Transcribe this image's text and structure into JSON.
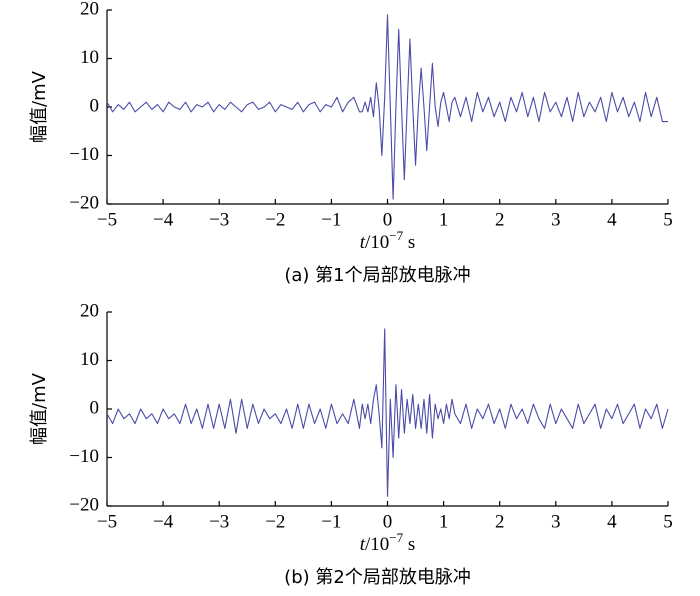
{
  "chart_data": [
    {
      "type": "line",
      "ylabel": "幅值/mV",
      "xlabel": [
        "t",
        "/10",
        "−7",
        " s"
      ],
      "caption": "(a)  第1个局部放电脉冲",
      "xlim": [
        -5,
        5
      ],
      "ylim": [
        -20,
        20
      ],
      "xticks": [
        {
          "value": -5,
          "label": "−5"
        },
        {
          "value": -4,
          "label": "−4"
        },
        {
          "value": -3,
          "label": "−3"
        },
        {
          "value": -2,
          "label": "−2"
        },
        {
          "value": -1,
          "label": "−1"
        },
        0,
        1,
        2,
        3,
        4,
        5
      ],
      "yticks": [
        {
          "value": -20,
          "label": "−20"
        },
        {
          "value": -10,
          "label": "−10"
        },
        0,
        10,
        20
      ],
      "x": [
        -5,
        -4.9,
        -4.8,
        -4.7,
        -4.6,
        -4.5,
        -4.4,
        -4.3,
        -4.2,
        -4.1,
        -4,
        -3.9,
        -3.8,
        -3.7,
        -3.6,
        -3.5,
        -3.4,
        -3.3,
        -3.2,
        -3.1,
        -3,
        -2.9,
        -2.8,
        -2.7,
        -2.6,
        -2.5,
        -2.4,
        -2.3,
        -2.2,
        -2.1,
        -2,
        -1.9,
        -1.8,
        -1.7,
        -1.6,
        -1.5,
        -1.4,
        -1.3,
        -1.2,
        -1.1,
        -1,
        -0.9,
        -0.8,
        -0.7,
        -0.6,
        -0.5,
        -0.45,
        -0.4,
        -0.35,
        -0.3,
        -0.25,
        -0.2,
        -0.15,
        -0.1,
        -0.05,
        0,
        0.05,
        0.1,
        0.15,
        0.2,
        0.25,
        0.3,
        0.35,
        0.4,
        0.45,
        0.5,
        0.55,
        0.6,
        0.65,
        0.7,
        0.75,
        0.8,
        0.85,
        0.9,
        0.95,
        1,
        1.05,
        1.1,
        1.15,
        1.2,
        1.3,
        1.4,
        1.5,
        1.6,
        1.7,
        1.8,
        1.9,
        2,
        2.1,
        2.2,
        2.3,
        2.4,
        2.5,
        2.6,
        2.7,
        2.8,
        2.9,
        3,
        3.1,
        3.2,
        3.3,
        3.4,
        3.5,
        3.6,
        3.7,
        3.8,
        3.9,
        4,
        4.1,
        4.2,
        4.3,
        4.4,
        4.5,
        4.6,
        4.7,
        4.8,
        4.9,
        5
      ],
      "series": [
        {
          "color": "#4b4ba8",
          "values": [
            1,
            -1,
            0.5,
            -0.5,
            1,
            -1,
            0,
            1,
            -0.5,
            0.5,
            -1,
            1,
            0,
            -0.5,
            1,
            -1,
            0.5,
            0,
            1,
            -1,
            0.5,
            -0.5,
            1,
            0,
            -1,
            0.5,
            1,
            -0.5,
            0,
            1,
            -1,
            0.5,
            0,
            -0.5,
            1,
            -1,
            0.5,
            1,
            -1,
            0.5,
            0,
            2,
            -1,
            1,
            2,
            -1,
            -1,
            1,
            -1,
            2,
            -2,
            5,
            0,
            -10,
            2,
            19,
            0,
            -19,
            0,
            16,
            0,
            -15,
            0,
            14,
            0,
            -12,
            0,
            8,
            0,
            -9,
            0,
            9,
            0,
            -4,
            1,
            3,
            0,
            -3,
            1,
            2,
            -2,
            2,
            -3,
            3,
            -1,
            2,
            -2,
            1,
            -3,
            2,
            -1,
            3,
            -2,
            2,
            -3,
            3,
            -1,
            1,
            -2,
            2,
            -3,
            3,
            -2,
            1,
            -1,
            2,
            -3,
            3,
            -1,
            2,
            -2,
            1,
            -3,
            3,
            -2,
            2,
            -3,
            -3
          ]
        }
      ]
    },
    {
      "type": "line",
      "ylabel": "幅值/mV",
      "xlabel": [
        "t",
        "/10",
        "−7",
        " s"
      ],
      "caption": "(b)  第2个局部放电脉冲",
      "xlim": [
        -5,
        5
      ],
      "ylim": [
        -20,
        20
      ],
      "xticks": [
        {
          "value": -5,
          "label": "−5"
        },
        {
          "value": -4,
          "label": "−4"
        },
        {
          "value": -3,
          "label": "−3"
        },
        {
          "value": -2,
          "label": "−2"
        },
        {
          "value": -1,
          "label": "−1"
        },
        0,
        1,
        2,
        3,
        4,
        5
      ],
      "yticks": [
        {
          "value": -20,
          "label": "−20"
        },
        {
          "value": -10,
          "label": "−10"
        },
        0,
        10,
        20
      ],
      "x": [
        -5,
        -4.9,
        -4.8,
        -4.7,
        -4.6,
        -4.5,
        -4.4,
        -4.3,
        -4.2,
        -4.1,
        -4,
        -3.9,
        -3.8,
        -3.7,
        -3.6,
        -3.5,
        -3.4,
        -3.3,
        -3.2,
        -3.1,
        -3,
        -2.9,
        -2.8,
        -2.7,
        -2.6,
        -2.5,
        -2.4,
        -2.3,
        -2.2,
        -2.1,
        -2,
        -1.9,
        -1.8,
        -1.7,
        -1.6,
        -1.5,
        -1.4,
        -1.3,
        -1.2,
        -1.1,
        -1,
        -0.9,
        -0.8,
        -0.7,
        -0.6,
        -0.5,
        -0.45,
        -0.4,
        -0.35,
        -0.3,
        -0.25,
        -0.2,
        -0.15,
        -0.1,
        -0.05,
        0,
        0.05,
        0.1,
        0.15,
        0.2,
        0.25,
        0.3,
        0.35,
        0.4,
        0.45,
        0.5,
        0.55,
        0.6,
        0.65,
        0.7,
        0.75,
        0.8,
        0.85,
        0.9,
        0.95,
        1,
        1.05,
        1.1,
        1.15,
        1.2,
        1.3,
        1.4,
        1.5,
        1.6,
        1.7,
        1.8,
        1.9,
        2,
        2.1,
        2.2,
        2.3,
        2.4,
        2.5,
        2.6,
        2.7,
        2.8,
        2.9,
        3,
        3.1,
        3.2,
        3.3,
        3.4,
        3.5,
        3.6,
        3.7,
        3.8,
        3.9,
        4,
        4.1,
        4.2,
        4.3,
        4.4,
        4.5,
        4.6,
        4.7,
        4.8,
        4.9,
        5
      ],
      "series": [
        {
          "color": "#4b4ba8",
          "values": [
            -1,
            -3,
            0,
            -2,
            -1,
            -3,
            0,
            -2,
            -1,
            -3,
            0,
            -2,
            -1,
            -3,
            1,
            -3,
            0,
            -4,
            1,
            -4,
            1,
            -4,
            2,
            -5,
            2,
            -4,
            1,
            -3,
            0,
            -2,
            -1,
            -3,
            0,
            -4,
            1,
            -4,
            1,
            -3,
            0,
            -4,
            1,
            -3,
            -1,
            -3,
            2,
            -4,
            1,
            -2,
            1,
            -3,
            2,
            5,
            -1,
            -8,
            16.5,
            -18,
            2,
            -10,
            5,
            -6,
            4,
            -5,
            2,
            -3,
            3,
            -4,
            1,
            -4,
            2,
            -5,
            3,
            -6,
            1,
            -2,
            0,
            -3,
            1,
            -2,
            2,
            -1,
            -3,
            1,
            -4,
            0,
            -2,
            1,
            -3,
            0,
            -4,
            1,
            -2,
            0,
            -3,
            1,
            -2,
            -4,
            1,
            -3,
            0,
            -2,
            -4,
            1,
            -3,
            -1,
            1,
            -4,
            0,
            -2,
            1,
            -3,
            -1,
            1,
            -4,
            0,
            -2,
            1,
            -4,
            0
          ]
        }
      ]
    }
  ]
}
